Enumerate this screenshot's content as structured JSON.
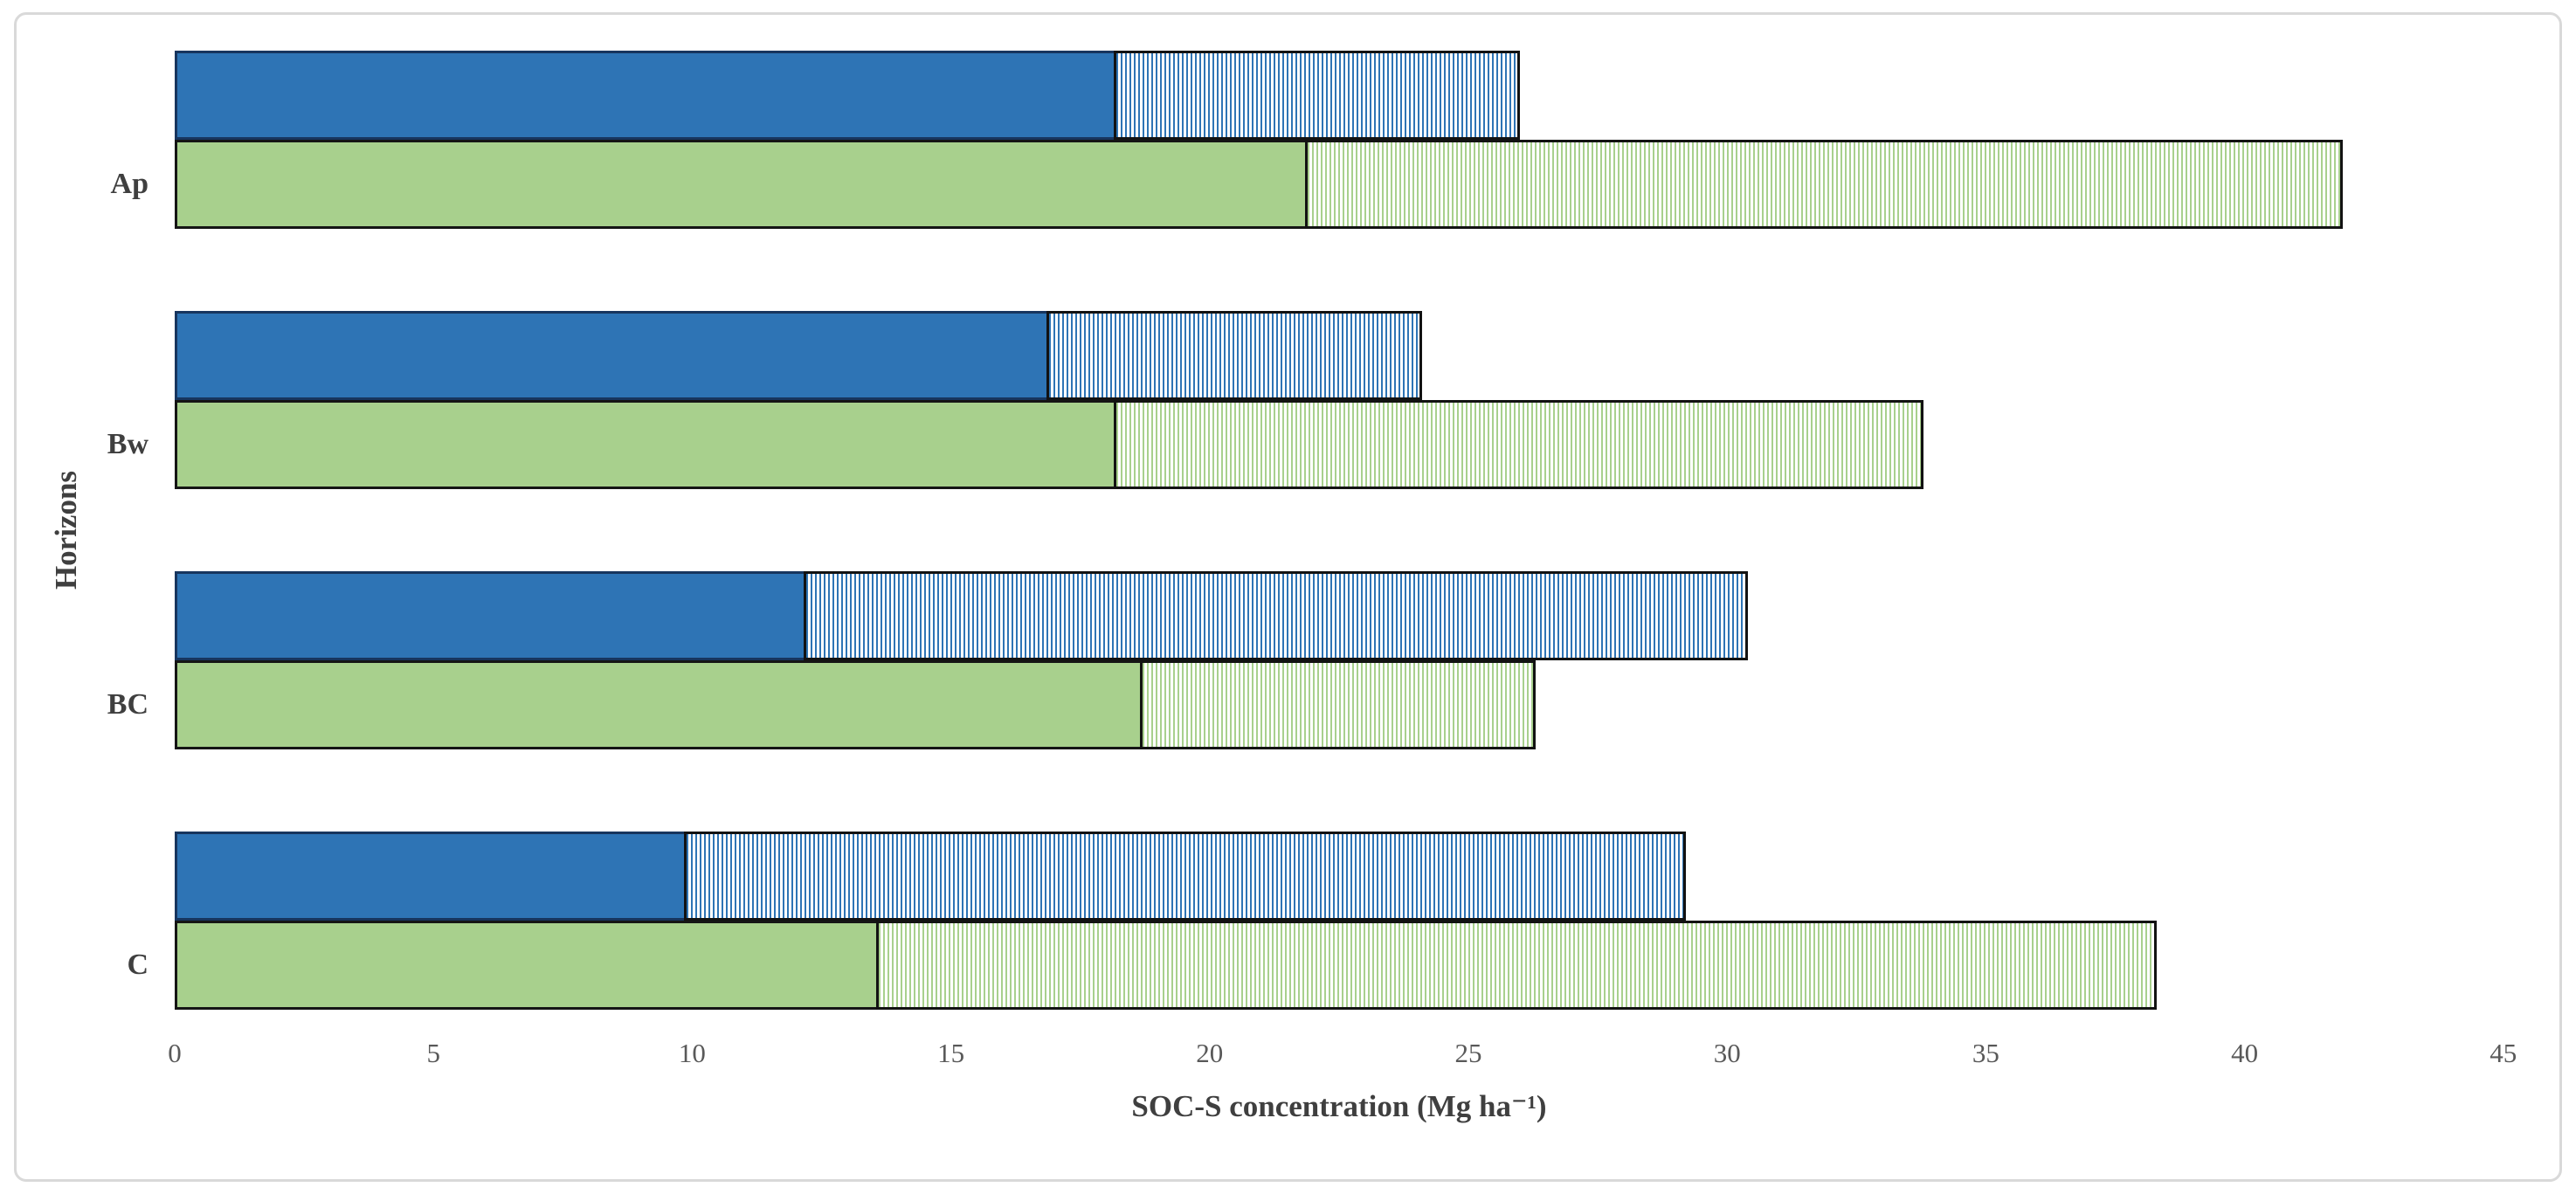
{
  "figure": {
    "background": "#ffffff",
    "border_color": "#d9d9d9"
  },
  "colors": {
    "blue_fill": "#2E74B5",
    "blue_border": "#17355E",
    "green_fill": "#A8D08D",
    "segment_border": "#121212",
    "tick_text": "#595959",
    "title_text": "#3f3f3f"
  },
  "chart_data": {
    "type": "bar",
    "orientation": "horizontal",
    "title": "",
    "xlabel": "SOC-S concentration (Mg ha⁻¹)",
    "ylabel": "Horizons",
    "xlim": [
      0,
      45
    ],
    "xticks": [
      0,
      5,
      10,
      15,
      20,
      25,
      30,
      35,
      40,
      45
    ],
    "categories": [
      "Ap",
      "Bw",
      "BC",
      "C"
    ],
    "grid": false,
    "legend": "none",
    "bars_per_category": [
      "blue",
      "green"
    ],
    "series": [
      {
        "name": "blue-solid",
        "bar": "blue",
        "pattern": "solid",
        "color": "#2E74B5",
        "values": [
          18.2,
          16.9,
          12.2,
          9.9
        ]
      },
      {
        "name": "blue-hatched",
        "bar": "blue",
        "pattern": "vertical-stripes",
        "color": "#2E74B5",
        "values": [
          7.8,
          7.2,
          18.2,
          19.3
        ]
      },
      {
        "name": "green-solid",
        "bar": "green",
        "pattern": "solid",
        "color": "#A8D08D",
        "values": [
          21.9,
          18.2,
          18.7,
          13.6
        ]
      },
      {
        "name": "green-hatched",
        "bar": "green",
        "pattern": "vertical-stripes",
        "color": "#A8D08D",
        "values": [
          20.0,
          15.6,
          7.6,
          24.7
        ]
      }
    ],
    "bar_totals": {
      "blue": [
        26.0,
        24.1,
        30.4,
        29.2
      ],
      "green": [
        41.9,
        33.8,
        26.3,
        38.3
      ]
    }
  }
}
